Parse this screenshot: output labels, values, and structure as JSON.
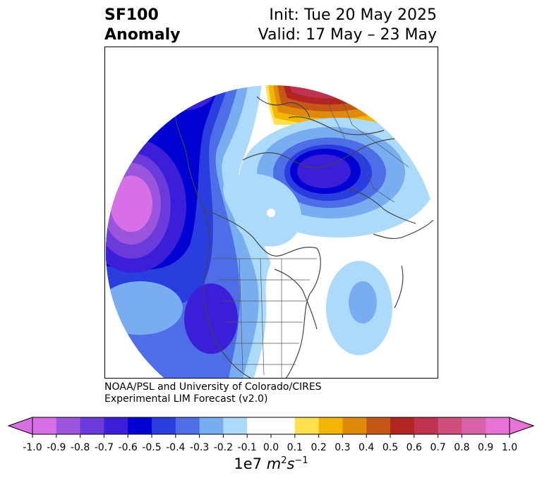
{
  "title": {
    "left_line1": "SF100",
    "left_line2": "Anomaly",
    "right_line1": "Init: Tue 20 May 2025",
    "right_line2": "Valid: 17 May – 23 May"
  },
  "credit": {
    "line1": "NOAA/PSL and University of Colorado/CIRES",
    "line2": "Experimental LIM Forecast (v2.0)"
  },
  "colorbar": {
    "ticks": [
      "-1.0",
      "-0.9",
      "-0.8",
      "-0.7",
      "-0.6",
      "-0.5",
      "-0.4",
      "-0.3",
      "-0.2",
      "-0.1",
      "0.0",
      "0.1",
      "0.2",
      "0.3",
      "0.4",
      "0.5",
      "0.6",
      "0.7",
      "0.8",
      "0.9",
      "1.0"
    ],
    "colors": [
      "#d86fe6",
      "#9b55dd",
      "#6a3adb",
      "#3b1fd8",
      "#0000d2",
      "#2a3ee0",
      "#4d6ee6",
      "#78aef0",
      "#acdafb",
      "#ffffff",
      "#ffffff",
      "#ffe14d",
      "#f2b600",
      "#e08a0a",
      "#c65817",
      "#b12422",
      "#c03350",
      "#cf4e7c",
      "#da62ab",
      "#e674d6"
    ],
    "unit_prefix": "1e7 ",
    "unit_m": "m",
    "unit_m_exp": "2",
    "unit_s": "s",
    "unit_s_exp": "−1"
  }
}
